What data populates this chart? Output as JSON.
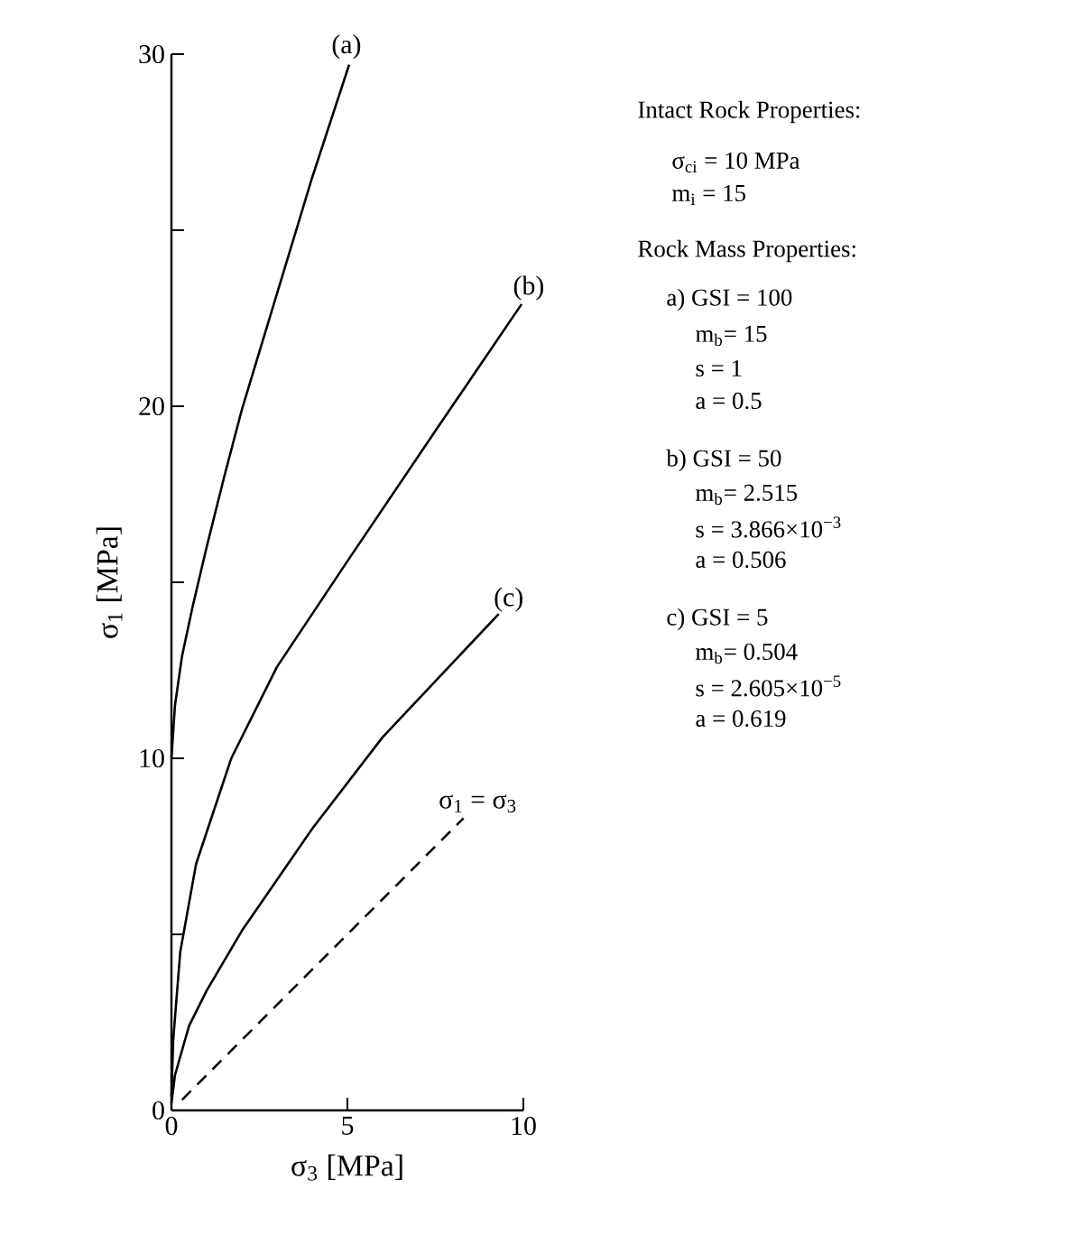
{
  "chart_data": {
    "type": "line",
    "xlabel": "σ$_{3}$ [MPa]",
    "ylabel": "σ$_{1}$ [MPa]",
    "xlim": [
      0,
      10
    ],
    "ylim": [
      0,
      30
    ],
    "xticks": [
      0,
      5,
      10
    ],
    "yticks": [
      0,
      {
        "value": 5,
        "label": null
      },
      10,
      {
        "value": 15,
        "label": null
      },
      20,
      {
        "value": 25,
        "label": null
      },
      30
    ],
    "marker": "none",
    "series": [
      {
        "color": "#000000",
        "line_style": "solid",
        "x": [
          0,
          0.1,
          0.3,
          0.6,
          1.0,
          1.5,
          2.0,
          3.0,
          4.0,
          5.05
        ],
        "values": [
          10,
          11.5,
          12.9,
          14.3,
          16.0,
          18.0,
          19.9,
          23.2,
          26.5,
          29.7
        ]
      },
      {
        "color": "#000000",
        "line_style": "solid",
        "x": [
          0,
          0.05,
          0.25,
          0.7,
          1.7,
          3.0,
          5.0,
          7.5,
          9.95
        ],
        "values": [
          0.4,
          2.0,
          4.5,
          7.0,
          10.0,
          12.6,
          15.6,
          19.3,
          22.9
        ]
      },
      {
        "color": "#000000",
        "line_style": "solid",
        "x": [
          0,
          0.1,
          0.5,
          1.0,
          2.0,
          4.0,
          6.0,
          9.3
        ],
        "values": [
          0.2,
          1.0,
          2.4,
          3.4,
          5.1,
          8.0,
          10.6,
          14.1
        ]
      },
      {
        "color": "#000000",
        "line_style": "dashed",
        "x": [
          0.3,
          8.3
        ],
        "values": [
          0.3,
          8.3
        ]
      }
    ],
    "annotations": [
      {
        "text": "(a)",
        "x": 5.05,
        "y": 29.7
      },
      {
        "text": "(b)",
        "x": 9.95,
        "y": 22.9
      },
      {
        "text": "(c)",
        "x": 9.3,
        "y": 14.1
      },
      {
        "text": "σ$_{1}$ = σ$_{3}$",
        "x": 8.3,
        "y": 8.3
      },
      "Intact Rock Properties:",
      "σ$_{ci}$ = 10 MPa",
      "m$_{i}$ = 15",
      "Rock Mass Properties:",
      "a) GSI = 100",
      "m$_{b}$= 15",
      "s = 1",
      "a = 0.5",
      "b) GSI = 50",
      "m$_{b}$= 2.515",
      "s = 3.866×10$^{−3}$",
      "a = 0.506",
      "c) GSI = 5",
      "m$_{b}$= 0.504",
      "s = 2.605×10$^{−5}$",
      "a = 0.619"
    ]
  }
}
